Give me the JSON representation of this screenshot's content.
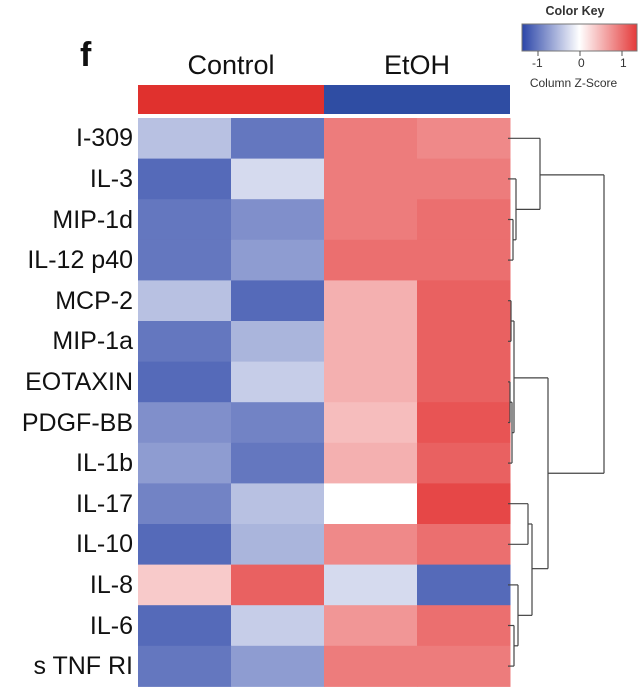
{
  "panel_letter": "f",
  "color_key": {
    "title": "Color Key",
    "scale_label": "Column Z-Score",
    "ticks": [
      "-1",
      "0",
      "1"
    ],
    "low_color": "#2b45a8",
    "mid_color": "#ffffff",
    "high_color": "#e43a3a"
  },
  "chart_data": {
    "type": "heatmap",
    "groups": [
      {
        "name": "Control",
        "color": "#e0312e"
      },
      {
        "name": "EtOH",
        "color": "#2f4da3"
      }
    ],
    "rows": [
      "I-309",
      "IL-3",
      "MIP-1d",
      "IL-12 p40",
      "MCP-2",
      "MIP-1a",
      "EOTAXIN",
      "PDGF-BB",
      "IL-1b",
      "IL-17",
      "IL-10",
      "IL-8",
      "IL-6",
      "s TNF RI"
    ],
    "columns_per_group": 2,
    "values": [
      [
        -0.5,
        -1.1,
        1.0,
        0.9
      ],
      [
        -1.2,
        -0.3,
        1.0,
        1.0
      ],
      [
        -1.1,
        -0.9,
        1.0,
        1.1
      ],
      [
        -1.1,
        -0.8,
        1.1,
        1.1
      ],
      [
        -0.5,
        -1.2,
        0.6,
        1.2
      ],
      [
        -1.1,
        -0.6,
        0.6,
        1.2
      ],
      [
        -1.2,
        -0.4,
        0.6,
        1.2
      ],
      [
        -0.9,
        -1.0,
        0.5,
        1.3
      ],
      [
        -0.8,
        -1.1,
        0.6,
        1.2
      ],
      [
        -1.0,
        -0.5,
        0.0,
        1.4
      ],
      [
        -1.2,
        -0.6,
        0.9,
        1.1
      ],
      [
        0.4,
        1.2,
        -0.3,
        -1.2
      ],
      [
        -1.2,
        -0.4,
        0.8,
        1.1
      ],
      [
        -1.1,
        -0.8,
        1.0,
        1.0
      ]
    ],
    "zlim": [
      -1.5,
      1.5
    ],
    "dendrogram": "rows"
  }
}
